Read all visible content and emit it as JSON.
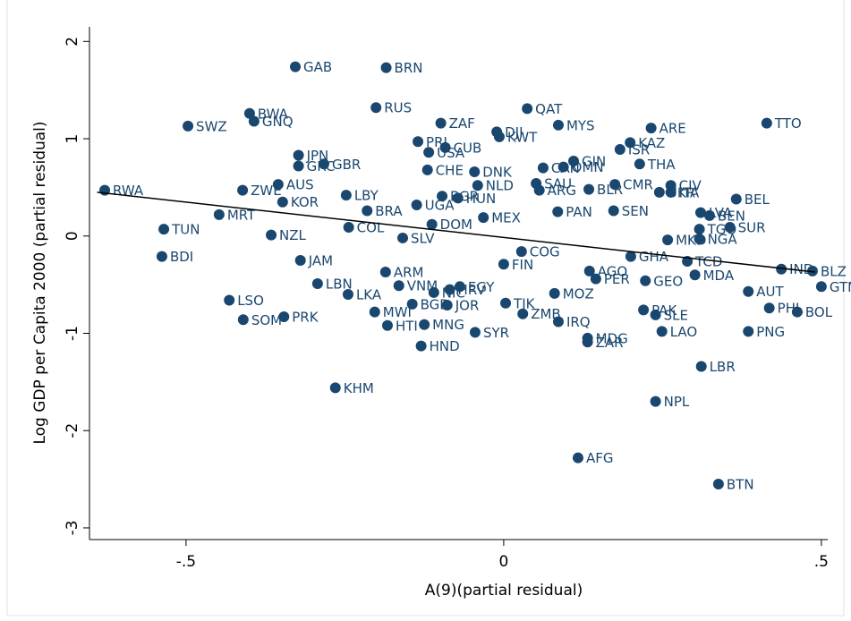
{
  "chart_data": {
    "type": "scatter",
    "x_label": "A(9)(partial residual)",
    "y_label": "Log GDP per Capita 2000 (partial residual)",
    "color": "#1a476f",
    "xlim": [
      -0.652,
      0.51
    ],
    "ylim": [
      -3.12,
      2.15
    ],
    "xticks": [
      {
        "value": -0.5,
        "label": "-.5"
      },
      0,
      {
        "value": 0.5,
        "label": ".5"
      }
    ],
    "yticks": [
      -3,
      -2,
      -1,
      0,
      1,
      2
    ],
    "fit": {
      "x": [
        -0.64,
        0.49
      ],
      "y": [
        0.45,
        -0.37
      ]
    },
    "point_labels": [
      "GAB",
      "BRN",
      "RUS",
      "QAT",
      "BWA",
      "GNQ",
      "ZAF",
      "TTO",
      "MYS",
      "SWZ",
      "ARE",
      "DJI",
      "KWT",
      "PRI",
      "KAZ",
      "CUB",
      "ISR",
      "USA",
      "JPN",
      "GIN",
      "GBR",
      "THA",
      "GRC",
      "CAN",
      "OMN",
      "CHE",
      "DNK",
      "CMR",
      "SAU",
      "AUS",
      "NLD",
      "CIV",
      "BLR",
      "ARG",
      "ZWE",
      "RWA",
      "UKR",
      "ITA",
      "LBY",
      "BGR",
      "HUN",
      "BEL",
      "KOR",
      "UGA",
      "BRA",
      "SEN",
      "PAN",
      "LVA",
      "MRT",
      "BEN",
      "MEX",
      "DOM",
      "COL",
      "SUR",
      "TUN",
      "TGO",
      "NZL",
      "SLV",
      "NGA",
      "MKD",
      "COG",
      "BDI",
      "GHA",
      "FIN",
      "JAM",
      "TCD",
      "IND",
      "AGO",
      "BLZ",
      "ARM",
      "MDA",
      "PER",
      "GEO",
      "LBN",
      "VNM",
      "GTM",
      "EGY",
      "HRV",
      "AUT",
      "NIC",
      "MOZ",
      "LKA",
      "LSO",
      "TJK",
      "BGD",
      "JOR",
      "PHL",
      "PAK",
      "BOL",
      "MWI",
      "ZMB",
      "SLE",
      "PRK",
      "SOM",
      "IRQ",
      "MNG",
      "HTI",
      "LAO",
      "PNG",
      "SYR",
      "MDG",
      "ZAR",
      "HND",
      "LBR",
      "KHM",
      "NPL",
      "AFG",
      "BTN"
    ],
    "x": [
      -0.328,
      -0.185,
      -0.201,
      0.037,
      -0.4,
      -0.393,
      -0.099,
      0.414,
      0.086,
      -0.497,
      0.232,
      -0.011,
      -0.007,
      -0.135,
      0.199,
      -0.092,
      0.183,
      -0.118,
      -0.323,
      0.11,
      -0.283,
      0.214,
      -0.323,
      0.062,
      0.094,
      -0.12,
      -0.046,
      0.175,
      0.051,
      -0.355,
      -0.041,
      0.263,
      0.134,
      0.056,
      -0.411,
      -0.628,
      0.245,
      0.263,
      -0.248,
      -0.097,
      -0.072,
      0.366,
      -0.348,
      -0.137,
      -0.215,
      0.173,
      0.085,
      0.31,
      -0.448,
      0.324,
      -0.032,
      -0.113,
      -0.244,
      0.356,
      -0.535,
      0.308,
      -0.366,
      -0.159,
      0.308,
      0.258,
      0.028,
      -0.538,
      0.2,
      0,
      -0.32,
      0.289,
      0.437,
      0.135,
      0.486,
      -0.186,
      0.301,
      0.145,
      0.223,
      -0.293,
      -0.165,
      0.5,
      -0.069,
      -0.085,
      0.385,
      -0.11,
      0.08,
      -0.245,
      -0.432,
      0.003,
      -0.144,
      -0.089,
      0.418,
      0.22,
      0.462,
      -0.203,
      0.03,
      0.239,
      -0.346,
      -0.41,
      0.086,
      -0.125,
      -0.183,
      0.249,
      0.385,
      -0.045,
      0.132,
      0.132,
      -0.13,
      0.311,
      -0.265,
      0.239,
      0.117,
      0.338
    ],
    "values": [
      1.74,
      1.73,
      1.32,
      1.31,
      1.26,
      1.18,
      1.16,
      1.16,
      1.14,
      1.13,
      1.11,
      1.07,
      1.02,
      0.97,
      0.96,
      0.91,
      0.89,
      0.86,
      0.83,
      0.77,
      0.74,
      0.74,
      0.72,
      0.7,
      0.71,
      0.68,
      0.66,
      0.53,
      0.54,
      0.53,
      0.52,
      0.52,
      0.48,
      0.47,
      0.47,
      0.47,
      0.45,
      0.45,
      0.42,
      0.41,
      0.39,
      0.38,
      0.35,
      0.32,
      0.26,
      0.26,
      0.25,
      0.24,
      0.22,
      0.21,
      0.19,
      0.12,
      0.09,
      0.09,
      0.07,
      0.07,
      0.01,
      -0.02,
      -0.03,
      -0.04,
      -0.16,
      -0.21,
      -0.21,
      -0.29,
      -0.25,
      -0.26,
      -0.34,
      -0.36,
      -0.36,
      -0.37,
      -0.4,
      -0.44,
      -0.46,
      -0.49,
      -0.51,
      -0.52,
      -0.52,
      -0.55,
      -0.57,
      -0.58,
      -0.59,
      -0.6,
      -0.66,
      -0.69,
      -0.7,
      -0.71,
      -0.74,
      -0.76,
      -0.78,
      -0.78,
      -0.8,
      -0.81,
      -0.83,
      -0.86,
      -0.88,
      -0.91,
      -0.92,
      -0.98,
      -0.98,
      -0.99,
      -1.05,
      -1.09,
      -1.13,
      -1.34,
      -1.56,
      -1.7,
      -2.28,
      -2.55
    ]
  }
}
